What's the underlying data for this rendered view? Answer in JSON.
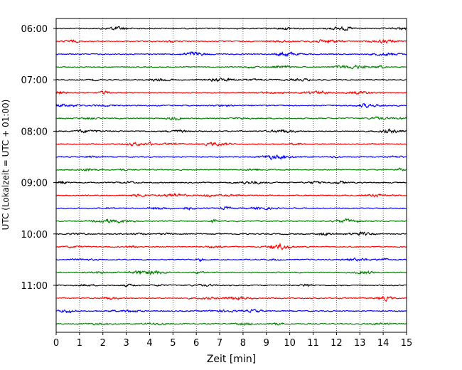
{
  "chart_data": {
    "type": "line",
    "title": "",
    "xlabel": "Zeit  [min]",
    "ylabel": "UTC (Lokalzeit = UTC + 01:00)",
    "xlim": [
      0,
      15
    ],
    "x_ticks": [
      0,
      1,
      2,
      3,
      4,
      5,
      6,
      7,
      8,
      9,
      10,
      11,
      12,
      13,
      14,
      15
    ],
    "y_tick_labels": [
      "06:00",
      "07:00",
      "08:00",
      "09:00",
      "10:00",
      "11:00"
    ],
    "grid": "vertical dotted lines at each minute",
    "trace_start_hour": 6,
    "traces_per_hour": 4,
    "trace_count": 24,
    "trace_colors": [
      "#000000",
      "#ff0000",
      "#0000ff",
      "#007f00"
    ],
    "amplitude_note": "continuous seismogram traces, one per 15-minute segment, cycling black/red/blue/green"
  }
}
